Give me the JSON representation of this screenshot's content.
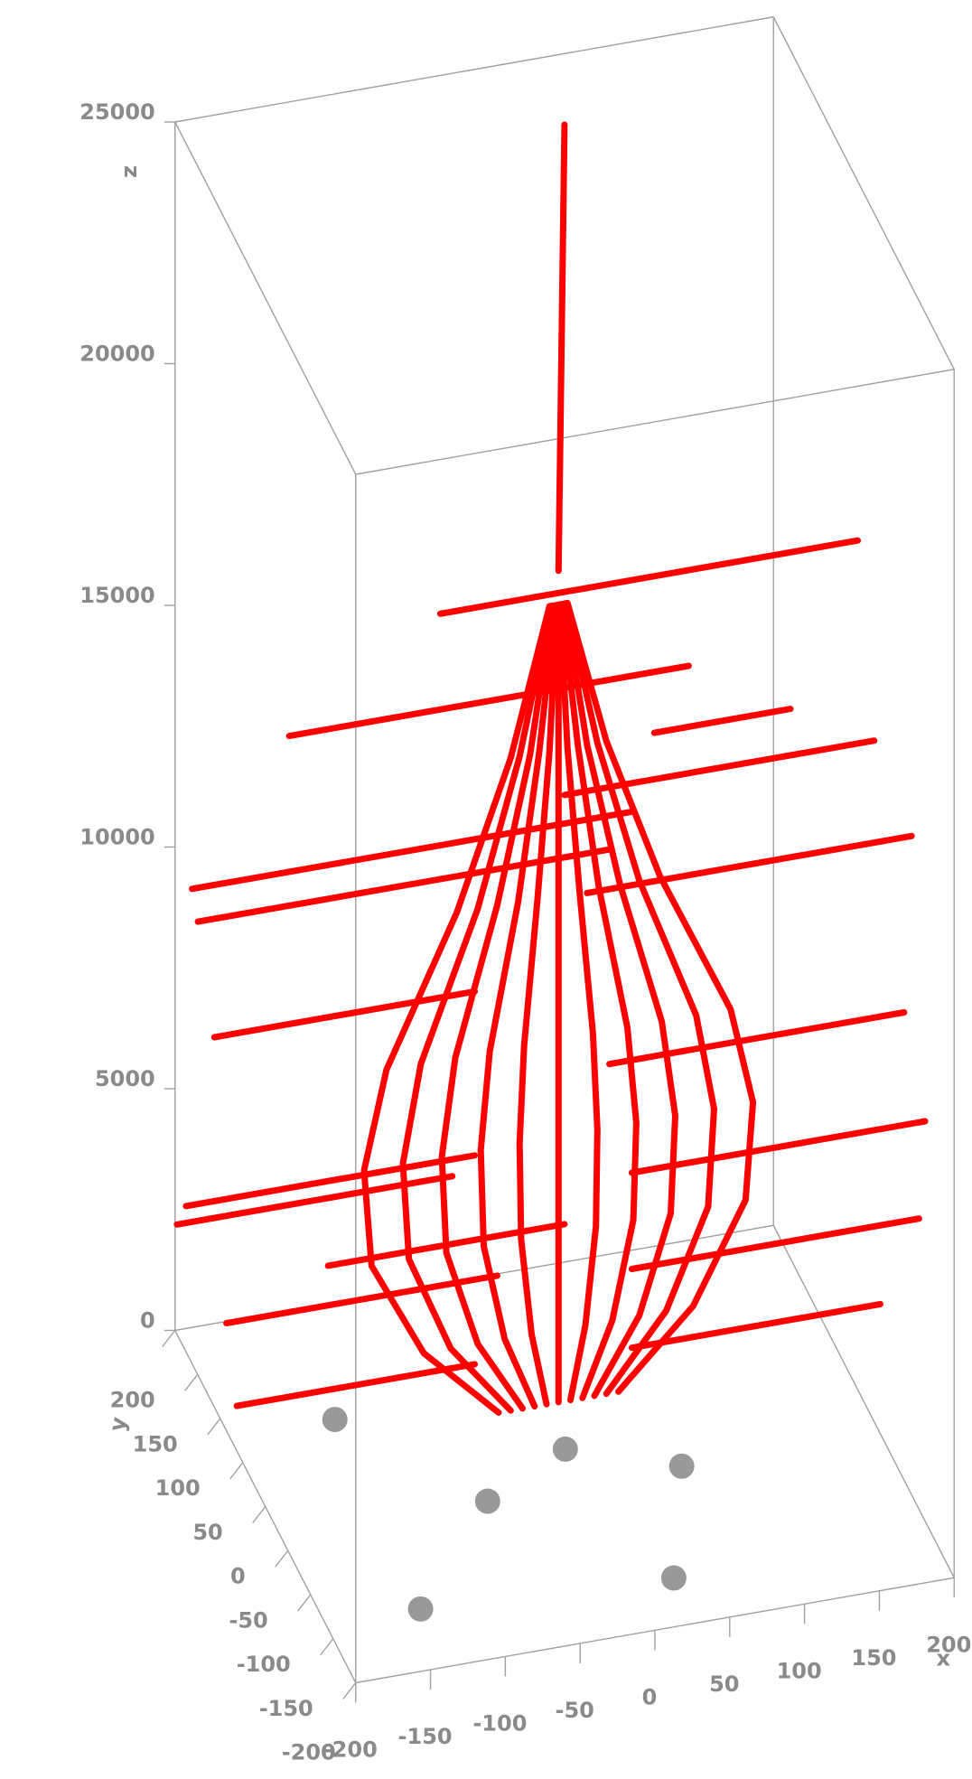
{
  "chart_data": {
    "type": "line3d",
    "xlabel": "x",
    "ylabel": "y",
    "zlabel": "z",
    "xlim": [
      -200,
      200
    ],
    "ylim": [
      -200,
      200
    ],
    "zlim": [
      0,
      25000
    ],
    "xticks": [
      -200,
      -150,
      -100,
      -50,
      0,
      50,
      100,
      150,
      200
    ],
    "yticks": [
      -200,
      -150,
      -100,
      -50,
      0,
      50,
      100,
      150,
      200
    ],
    "zticks": [
      0,
      5000,
      10000,
      15000,
      20000,
      25000
    ],
    "series": [
      {
        "mode": "lines",
        "color": "#ff0000",
        "x": [
          38,
          8,
          null,
          -1,
          -27,
          -63,
          -110,
          -125,
          -120,
          -85,
          -35,
          null,
          0,
          -21,
          -49,
          -87,
          -99,
          -95,
          -67,
          -27,
          null,
          1,
          -14,
          -36,
          -64,
          -73,
          -70,
          -49,
          -19,
          null,
          3,
          -8,
          -22,
          -41,
          -47,
          -45,
          -31,
          -11,
          null,
          4,
          -1,
          -9,
          -18,
          -21,
          -20,
          -13,
          -3,
          null,
          5,
          5,
          5,
          5,
          5,
          5,
          5,
          5,
          null,
          6,
          11,
          19,
          28,
          31,
          30,
          23,
          13,
          null,
          7,
          18,
          32,
          51,
          57,
          55,
          41,
          21,
          null,
          9,
          24,
          46,
          74,
          83,
          80,
          59,
          29,
          null,
          10,
          31,
          59,
          97,
          109,
          105,
          77,
          37,
          null,
          11,
          37,
          73,
          120,
          135,
          130,
          95,
          45,
          null,
          -74,
          205,
          null,
          -175,
          92,
          null,
          -240,
          54,
          null,
          -236,
          39,
          null,
          9,
          216,
          null,
          24,
          241,
          null,
          -225,
          -51,
          null,
          39,
          236,
          null,
          -244,
          -51,
          null,
          -250,
          -66,
          null,
          54,
          250,
          null,
          -217,
          -36,
          null,
          54,
          246,
          null,
          -210,
          -51,
          null,
          54,
          220,
          null,
          69,
          160,
          null,
          -149,
          9
        ],
        "y": [
          126,
          40,
          null,
          30,
          30,
          30,
          30,
          30,
          30,
          30,
          30,
          null,
          30,
          30,
          30,
          30,
          30,
          30,
          30,
          30,
          null,
          30,
          30,
          30,
          30,
          30,
          30,
          30,
          30,
          null,
          30,
          30,
          30,
          30,
          30,
          30,
          30,
          30,
          null,
          30,
          30,
          30,
          30,
          30,
          30,
          30,
          30,
          null,
          30,
          30,
          30,
          30,
          30,
          30,
          30,
          30,
          null,
          30,
          30,
          30,
          30,
          30,
          30,
          30,
          30,
          null,
          30,
          30,
          30,
          30,
          30,
          30,
          30,
          30,
          null,
          30,
          30,
          30,
          30,
          30,
          30,
          30,
          30,
          null,
          30,
          30,
          30,
          30,
          30,
          30,
          30,
          30,
          null,
          30,
          30,
          30,
          30,
          30,
          30,
          30,
          30,
          null,
          30,
          30,
          null,
          30,
          30,
          null,
          30,
          30,
          null,
          30,
          30,
          null,
          30,
          30,
          null,
          30,
          30,
          null,
          30,
          30,
          null,
          30,
          30,
          null,
          30,
          30,
          null,
          30,
          30,
          null,
          30,
          30,
          null,
          30,
          30,
          null,
          30,
          30,
          null,
          30,
          30,
          null,
          30,
          30,
          null,
          30,
          30,
          null,
          30,
          30
        ],
        "z": [
          25000,
          17500,
          null,
          17000,
          14000,
          11000,
          8000,
          6000,
          4000,
          2000,
          500,
          null,
          17000,
          14000,
          11000,
          8000,
          6000,
          4000,
          2000,
          500,
          null,
          17000,
          14000,
          11000,
          8000,
          6000,
          4000,
          2000,
          500,
          null,
          17000,
          14000,
          11000,
          8000,
          6000,
          4000,
          2000,
          500,
          null,
          17000,
          14000,
          11000,
          8000,
          6000,
          4000,
          2000,
          500,
          null,
          17000,
          14000,
          11000,
          8000,
          6000,
          4000,
          2000,
          500,
          null,
          17000,
          14000,
          11000,
          8000,
          6000,
          4000,
          2000,
          500,
          null,
          17000,
          14000,
          11000,
          8000,
          6000,
          4000,
          2000,
          500,
          null,
          17000,
          14000,
          11000,
          8000,
          6000,
          4000,
          2000,
          500,
          null,
          17000,
          14000,
          11000,
          8000,
          6000,
          4000,
          2000,
          500,
          null,
          17000,
          14000,
          11000,
          8000,
          6000,
          4000,
          2000,
          500,
          null,
          17240,
          17240,
          null,
          15260,
          15260,
          null,
          12450,
          12450,
          null,
          11750,
          11750,
          null,
          13040,
          13040,
          null,
          10930,
          10930,
          null,
          9300,
          9300,
          null,
          7310,
          7310,
          null,
          5910,
          5910,
          null,
          5560,
          5560,
          null,
          4980,
          4980,
          null,
          3340,
          3340,
          null,
          2990,
          2990,
          null,
          1590,
          1590,
          null,
          1360,
          1360,
          null,
          14000,
          14000,
          null,
          4160,
          4160
        ]
      },
      {
        "mode": "markers",
        "color": "#999999",
        "x": [
          -130,
          2,
          68,
          -62,
          28,
          -137
        ],
        "y": [
          78,
          5,
          -34,
          -35,
          -149,
          -135
        ],
        "z": [
          0,
          0,
          0,
          0,
          0,
          0
        ]
      }
    ]
  }
}
